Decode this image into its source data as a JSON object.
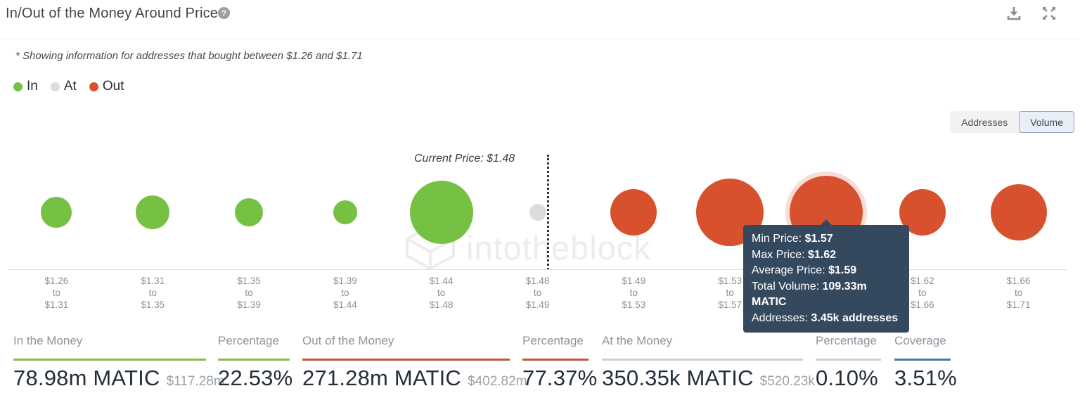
{
  "header": {
    "title": "In/Out of the Money Around Price",
    "icons": {
      "help": "question-mark-icon",
      "download": "download-icon",
      "expand": "expand-icon"
    }
  },
  "note": "* Showing information for addresses that bought between $1.26 and $1.71",
  "legend": [
    {
      "key": "in",
      "label": "In",
      "color": "#76c043"
    },
    {
      "key": "at",
      "label": "At",
      "color": "#dcdcdc"
    },
    {
      "key": "out",
      "label": "Out",
      "color": "#d8512f"
    }
  ],
  "toggle": {
    "options": [
      "Addresses",
      "Volume"
    ],
    "selected": "Volume"
  },
  "chart_data": {
    "type": "bubble",
    "title": "In/Out of the Money Around Price",
    "current_price": 1.48,
    "current_price_label": "Current Price: $1.48",
    "colors": {
      "in": "#76c043",
      "at": "#dcdcdc",
      "out": "#d8512f"
    },
    "bubbles": [
      {
        "from": "$1.26",
        "to": "$1.31",
        "status": "in",
        "radius": 22
      },
      {
        "from": "$1.31",
        "to": "$1.35",
        "status": "in",
        "radius": 24
      },
      {
        "from": "$1.35",
        "to": "$1.39",
        "status": "in",
        "radius": 20
      },
      {
        "from": "$1.39",
        "to": "$1.44",
        "status": "in",
        "radius": 17
      },
      {
        "from": "$1.44",
        "to": "$1.48",
        "status": "in",
        "radius": 45
      },
      {
        "from": "$1.48",
        "to": "$1.49",
        "status": "at",
        "radius": 12
      },
      {
        "from": "$1.49",
        "to": "$1.53",
        "status": "out",
        "radius": 33
      },
      {
        "from": "$1.53",
        "to": "$1.57",
        "status": "out",
        "radius": 48
      },
      {
        "from": "$1.57",
        "to": "$1.62",
        "status": "out",
        "radius": 52,
        "hovered": true
      },
      {
        "from": "$1.62",
        "to": "$1.66",
        "status": "out",
        "radius": 33
      },
      {
        "from": "$1.66",
        "to": "$1.71",
        "status": "out",
        "radius": 40
      }
    ],
    "tooltip": {
      "lines": [
        {
          "label": "Min Price:",
          "value": "$1.57"
        },
        {
          "label": "Max Price:",
          "value": "$1.62"
        },
        {
          "label": "Average Price:",
          "value": "$1.59"
        },
        {
          "label": "Total Volume:",
          "value": "109.33m MATIC"
        },
        {
          "label": "Addresses:",
          "value": "3.45k addresses"
        }
      ]
    }
  },
  "watermark": {
    "text": "intotheblock"
  },
  "stats": [
    {
      "label": "In the Money",
      "value": "78.98m MATIC",
      "secondary": "$117.28m",
      "accent": "#8cbb4e"
    },
    {
      "label": "Percentage",
      "value": "22.53%",
      "secondary": "",
      "accent": "#8cbb4e"
    },
    {
      "label": "Out of the Money",
      "value": "271.28m MATIC",
      "secondary": "$402.82m",
      "accent": "#c05540"
    },
    {
      "label": "Percentage",
      "value": "77.37%",
      "secondary": "",
      "accent": "#c05540"
    },
    {
      "label": "At the Money",
      "value": "350.35k MATIC",
      "secondary": "$520.23k",
      "accent": "#cdd0d2"
    },
    {
      "label": "Percentage",
      "value": "0.10%",
      "secondary": "",
      "accent": "#cdd0d2"
    },
    {
      "label": "Coverage",
      "value": "3.51%",
      "secondary": "",
      "accent": "#4579a9"
    }
  ]
}
